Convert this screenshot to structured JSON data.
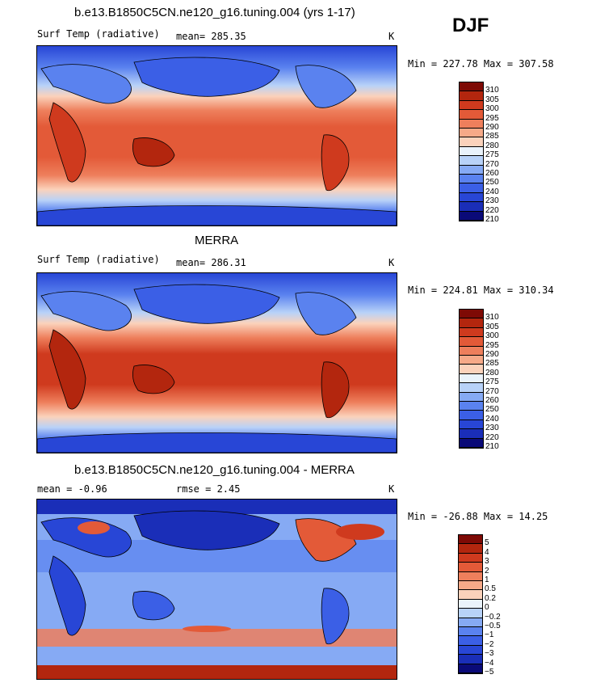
{
  "season": "DJF",
  "palette_temp": [
    "#0a0a78",
    "#1a2eb8",
    "#2846d6",
    "#3b5fe6",
    "#5a82ef",
    "#86aaf4",
    "#b8d2f8",
    "#eaf3fb",
    "#fbd2bb",
    "#f6a988",
    "#ee7f5c",
    "#e35a38",
    "#cf3a1e",
    "#b3260e",
    "#7e0a05"
  ],
  "palette_diff": [
    "#0a0a78",
    "#1a2eb8",
    "#2846d6",
    "#3b5fe6",
    "#5a82ef",
    "#86aaf4",
    "#b8d2f8",
    "#eaf3fb",
    "#fbd2bb",
    "#f6a988",
    "#ee7f5c",
    "#e35a38",
    "#cf3a1e",
    "#b3260e",
    "#7e0a05"
  ],
  "panels": [
    {
      "title": "b.e13.B1850C5CN.ne120_g16.tuning.004 (yrs 1-17)",
      "variable": "Surf Temp (radiative)",
      "stat": "mean= 285.35",
      "units": "K",
      "minmax": "Min = 227.78 Max = 307.58",
      "levels": [
        "310",
        "305",
        "300",
        "295",
        "290",
        "285",
        "280",
        "275",
        "270",
        "260",
        "250",
        "240",
        "230",
        "220",
        "210"
      ]
    },
    {
      "title": "MERRA",
      "variable": "Surf Temp (radiative)",
      "stat": "mean= 286.31",
      "units": "K",
      "minmax": "Min = 224.81 Max = 310.34",
      "levels": [
        "310",
        "305",
        "300",
        "295",
        "290",
        "285",
        "280",
        "275",
        "270",
        "260",
        "250",
        "240",
        "230",
        "220",
        "210"
      ]
    },
    {
      "title": "b.e13.B1850C5CN.ne120_g16.tuning.004 - MERRA",
      "variable": "mean =   -0.96",
      "stat": "rmse =    2.45",
      "units": "K",
      "minmax": "Min = -26.88 Max =  14.25",
      "levels": [
        "5",
        "4",
        "3",
        "2",
        "1",
        "0.5",
        "0.2",
        "0",
        "−0.2",
        "−0.5",
        "−1",
        "−2",
        "−3",
        "−4",
        "−5"
      ]
    }
  ],
  "chart_data": [
    {
      "type": "heatmap",
      "title": "b.e13.B1850C5CN.ne120_g16.tuning.004 (yrs 1-17)",
      "field": "Surf Temp (radiative)",
      "units": "K",
      "season": "DJF",
      "mean": 285.35,
      "min": 227.78,
      "max": 307.58,
      "contour_levels": [
        210,
        220,
        230,
        240,
        250,
        260,
        270,
        275,
        280,
        285,
        290,
        295,
        300,
        305,
        310
      ]
    },
    {
      "type": "heatmap",
      "title": "MERRA",
      "field": "Surf Temp (radiative)",
      "units": "K",
      "season": "DJF",
      "mean": 286.31,
      "min": 224.81,
      "max": 310.34,
      "contour_levels": [
        210,
        220,
        230,
        240,
        250,
        260,
        270,
        275,
        280,
        285,
        290,
        295,
        300,
        305,
        310
      ]
    },
    {
      "type": "heatmap",
      "title": "b.e13.B1850C5CN.ne120_g16.tuning.004 - MERRA",
      "units": "K",
      "season": "DJF",
      "mean": -0.96,
      "rmse": 2.45,
      "min": -26.88,
      "max": 14.25,
      "contour_levels": [
        -5,
        -4,
        -3,
        -2,
        -1,
        -0.5,
        -0.2,
        0,
        0.2,
        0.5,
        1,
        2,
        3,
        4,
        5
      ]
    }
  ]
}
